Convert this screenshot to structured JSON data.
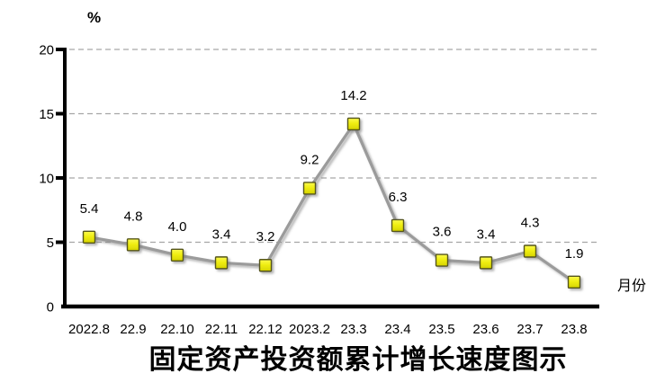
{
  "chart_data": {
    "type": "line",
    "title": "固定资产投资额累计增长速度图示",
    "unit_label": "%",
    "xlabel": "月份",
    "categories": [
      "2022.8",
      "22.9",
      "22.10",
      "22.11",
      "22.12",
      "2023.2",
      "23.3",
      "23.4",
      "23.5",
      "23.6",
      "23.7",
      "23.8"
    ],
    "values": [
      5.4,
      4.8,
      4.0,
      3.4,
      3.2,
      9.2,
      14.2,
      6.3,
      3.6,
      3.4,
      4.3,
      1.9
    ],
    "value_labels": [
      "5.4",
      "4.8",
      "4.0",
      "3.4",
      "3.2",
      "9.2",
      "14.2",
      "6.3",
      "3.6",
      "3.4",
      "4.3",
      "1.9"
    ],
    "y_ticks": [
      0,
      5,
      10,
      15,
      20
    ],
    "ylim": [
      0,
      20
    ],
    "grid": "horizontal-dashed",
    "legend": "none",
    "colors": {
      "line": "#9b9b9b",
      "marker_fill_top": "#fbfa4e",
      "marker_fill_bottom": "#d6d400",
      "marker_border": "#55551c",
      "grid": "#a6a6a6",
      "axis": "#000000",
      "background": "#ffffff"
    }
  }
}
